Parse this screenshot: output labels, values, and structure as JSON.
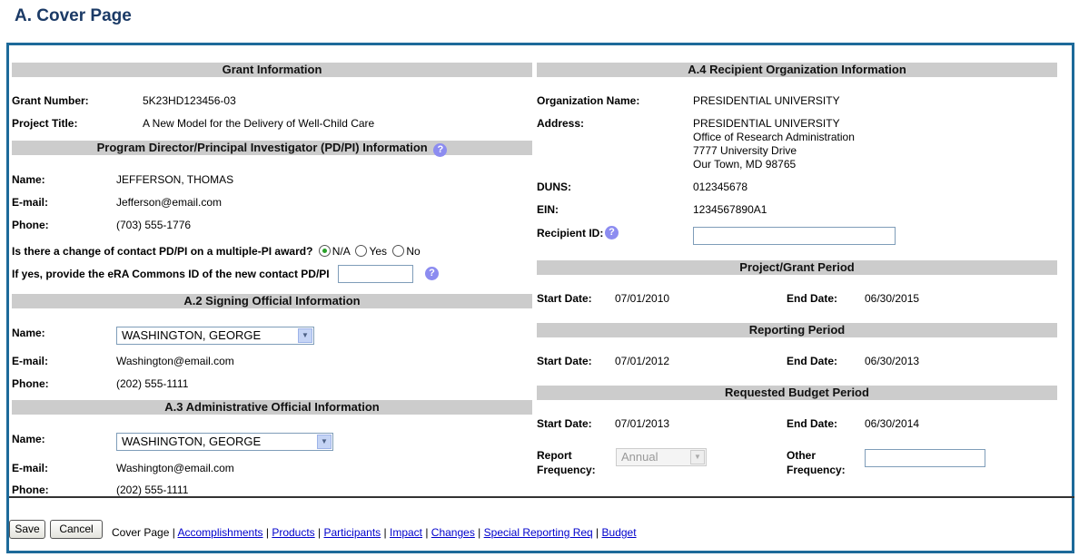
{
  "page_title": "A. Cover Page",
  "grant": {
    "header": "Grant Information",
    "number_label": "Grant Number:",
    "number": "5K23HD123456-03",
    "title_label": "Project Title:",
    "title": "A New Model for the Delivery of Well-Child Care"
  },
  "pdpi": {
    "header": "Program Director/Principal Investigator (PD/PI) Information",
    "name_label": "Name:",
    "name": "JEFFERSON, THOMAS",
    "email_label": "E-mail:",
    "email": "Jefferson@email.com",
    "phone_label": "Phone:",
    "phone": "(703) 555-1776",
    "change_question": "Is there a change of contact PD/PI on a multiple-PI award?",
    "options": [
      "N/A",
      "Yes",
      "No"
    ],
    "selected": "N/A",
    "era_label": "If yes, provide the eRA Commons ID of the new contact PD/PI",
    "era_value": ""
  },
  "signing": {
    "header": "A.2 Signing Official Information",
    "name_label": "Name:",
    "name": "WASHINGTON, GEORGE",
    "email_label": "E-mail:",
    "email": "Washington@email.com",
    "phone_label": "Phone:",
    "phone": "(202) 555-1111"
  },
  "admin": {
    "header": "A.3 Administrative Official Information",
    "name_label": "Name:",
    "name": "WASHINGTON, GEORGE",
    "email_label": "E-mail:",
    "email": "Washington@email.com",
    "phone_label": "Phone:",
    "phone": "(202) 555-1111"
  },
  "org": {
    "header": "A.4 Recipient Organization Information",
    "name_label": "Organization Name:",
    "name": "PRESIDENTIAL UNIVERSITY",
    "address_label": "Address:",
    "address": [
      "PRESIDENTIAL UNIVERSITY",
      "Office of Research Administration",
      "7777 University Drive",
      "Our Town, MD 98765"
    ],
    "duns_label": "DUNS:",
    "duns": "012345678",
    "ein_label": "EIN:",
    "ein": "1234567890A1",
    "recipient_label": "Recipient ID:",
    "recipient_value": ""
  },
  "project_period": {
    "header": "Project/Grant Period",
    "start_label": "Start Date:",
    "start": "07/01/2010",
    "end_label": "End Date:",
    "end": "06/30/2015"
  },
  "reporting_period": {
    "header": "Reporting Period",
    "start_label": "Start Date:",
    "start": "07/01/2012",
    "end_label": "End Date:",
    "end": "06/30/2013"
  },
  "budget_period": {
    "header": "Requested Budget Period",
    "start_label": "Start Date:",
    "start": "07/01/2013",
    "end_label": "End Date:",
    "end": "06/30/2014",
    "freq_label_1": "Report",
    "freq_label_2": "Frequency:",
    "freq": "Annual",
    "other_label_1": "Other",
    "other_label_2": "Frequency:",
    "other_value": ""
  },
  "footer": {
    "save": "Save",
    "cancel": "Cancel",
    "current": "Cover Page",
    "links": [
      "Accomplishments",
      "Products",
      "Participants",
      "Impact",
      "Changes",
      "Special Reporting Req",
      "Budget"
    ]
  },
  "colors": {
    "border": "#1d6a9a",
    "header_bg": "#cccccc",
    "title": "#1b3a66",
    "help": "#8c8cf0"
  }
}
